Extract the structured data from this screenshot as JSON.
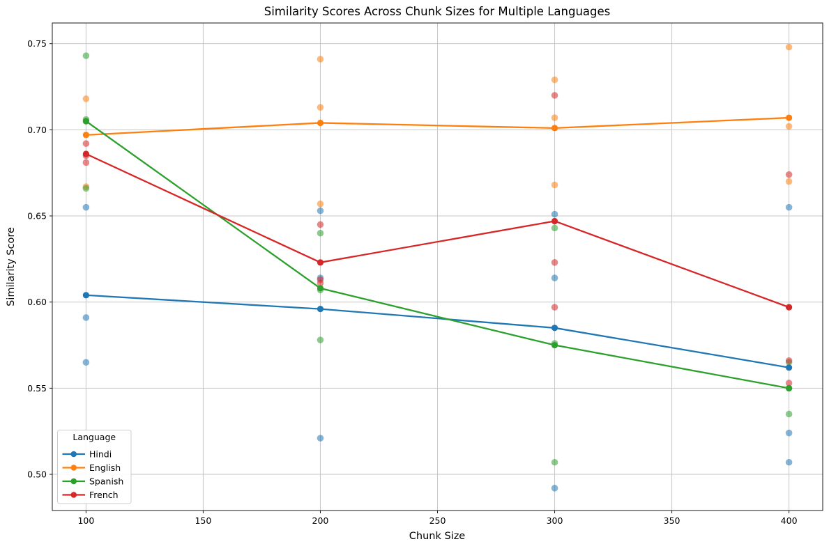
{
  "chart_data": {
    "type": "line",
    "title": "Similarity Scores Across Chunk Sizes for Multiple Languages",
    "xlabel": "Chunk Size",
    "ylabel": "Similarity Score",
    "legend": {
      "title": "Language",
      "position": "lower left"
    },
    "axes": {
      "xlim": [
        85.6,
        414.4
      ],
      "ylim": [
        0.479,
        0.762
      ],
      "xticks": [
        100,
        150,
        200,
        250,
        300,
        350,
        400
      ],
      "yticks": [
        0.5,
        0.55,
        0.6,
        0.65,
        0.7,
        0.75
      ],
      "grid": true,
      "grid_color": "#c6c6c6",
      "spine_color": "#1a1a1a"
    },
    "x": [
      100,
      200,
      300,
      400
    ],
    "series": [
      {
        "name": "Hindi",
        "color": "#1f77b4",
        "mean": [
          0.604,
          0.596,
          0.585,
          0.562
        ],
        "scatter": [
          [
            0.655,
            0.591,
            0.565
          ],
          [
            0.653,
            0.614,
            0.521
          ],
          [
            0.651,
            0.614,
            0.492
          ],
          [
            0.655,
            0.524,
            0.507
          ]
        ]
      },
      {
        "name": "English",
        "color": "#ff7f0e",
        "mean": [
          0.697,
          0.704,
          0.701,
          0.707
        ],
        "scatter": [
          [
            0.718,
            0.705,
            0.667
          ],
          [
            0.741,
            0.713,
            0.657
          ],
          [
            0.729,
            0.707,
            0.668
          ],
          [
            0.748,
            0.702,
            0.67
          ]
        ]
      },
      {
        "name": "Spanish",
        "color": "#2ca02c",
        "mean": [
          0.705,
          0.608,
          0.575,
          0.55
        ],
        "scatter": [
          [
            0.743,
            0.706,
            0.666
          ],
          [
            0.64,
            0.607,
            0.578
          ],
          [
            0.643,
            0.576,
            0.507
          ],
          [
            0.565,
            0.55,
            0.535
          ]
        ]
      },
      {
        "name": "French",
        "color": "#d62728",
        "mean": [
          0.686,
          0.623,
          0.647,
          0.597
        ],
        "scatter": [
          [
            0.692,
            0.685,
            0.681
          ],
          [
            0.645,
            0.613,
            0.611
          ],
          [
            0.72,
            0.623,
            0.597
          ],
          [
            0.674,
            0.566,
            0.553
          ]
        ]
      }
    ]
  }
}
